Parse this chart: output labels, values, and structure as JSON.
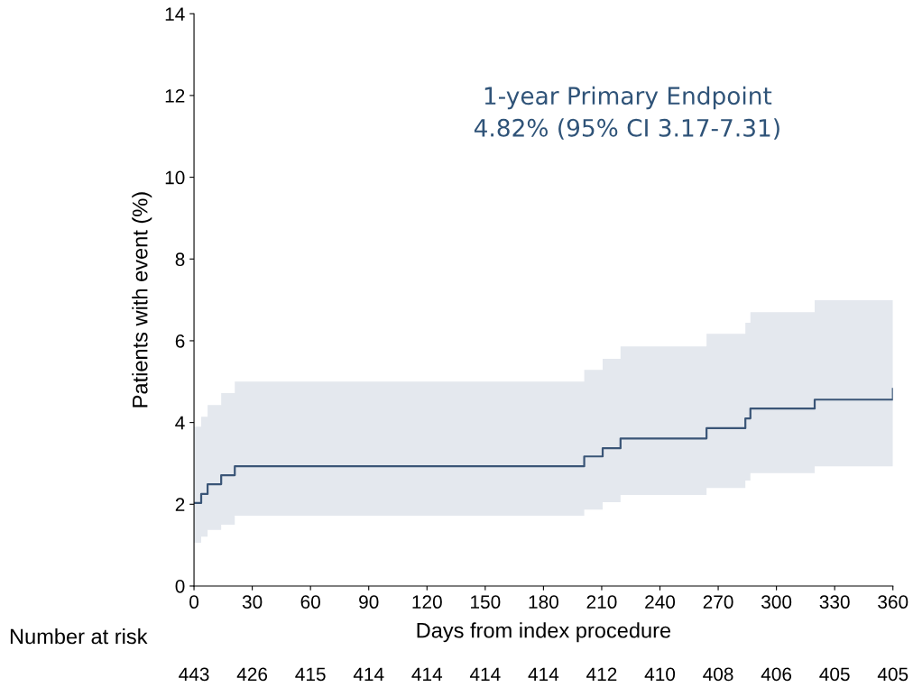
{
  "chart_data": {
    "type": "step",
    "xlabel": "Days from index procedure",
    "ylabel": "Patients with event (%)",
    "xlim": [
      0,
      360
    ],
    "xticks": [
      0,
      30,
      60,
      90,
      120,
      150,
      180,
      210,
      240,
      270,
      300,
      330,
      360
    ],
    "ylim": [
      0,
      14
    ],
    "yticks": [
      0,
      2,
      4,
      6,
      8,
      10,
      12,
      14
    ],
    "grid": false,
    "legend": false,
    "series": [
      {
        "color": "#3a5577",
        "x": [
          0,
          3.7,
          7,
          14,
          21,
          201,
          210.5,
          219.7,
          264,
          284,
          286.6,
          319.7,
          360
        ],
        "values": [
          2.03,
          2.25,
          2.49,
          2.71,
          2.93,
          3.17,
          3.37,
          3.61,
          3.86,
          4.1,
          4.34,
          4.56,
          4.82
        ],
        "lower": [
          1.06,
          1.21,
          1.37,
          1.5,
          1.72,
          1.87,
          2.05,
          2.23,
          2.4,
          2.58,
          2.76,
          2.93,
          3.17
        ],
        "upper": [
          3.9,
          4.14,
          4.43,
          4.72,
          5.0,
          5.29,
          5.56,
          5.86,
          6.17,
          6.44,
          6.7,
          6.99,
          7.31
        ]
      }
    ],
    "annotations": [
      "1-year Primary Endpoint\n4.82% (95% CI 3.17-7.31)",
      "Number at risk",
      "443",
      "426",
      "415",
      "414",
      "414",
      "414",
      "414",
      "412",
      "410",
      "408",
      "406",
      "405",
      "405"
    ]
  }
}
